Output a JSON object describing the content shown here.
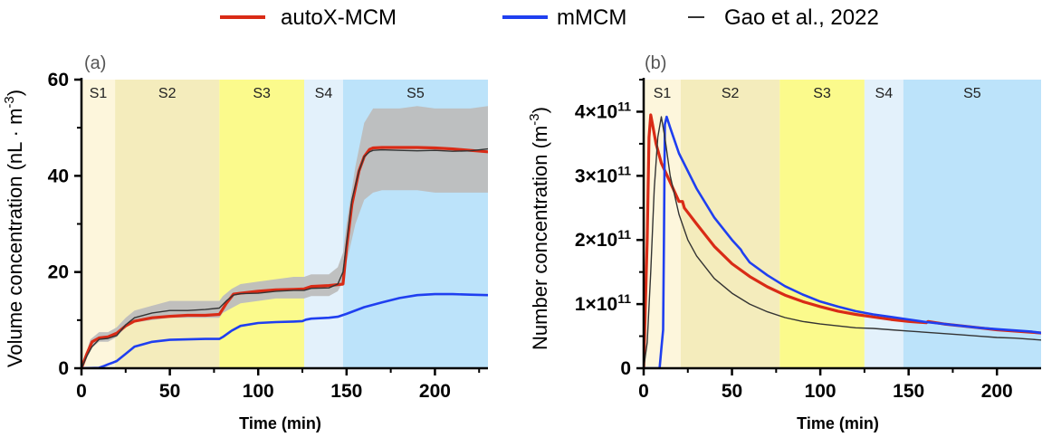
{
  "legend": [
    {
      "name": "autoX-MCM",
      "color": "#d92b16"
    },
    {
      "name": "mMCM",
      "color": "#1f3ff0"
    },
    {
      "name": "Gao et al., 2022",
      "color": "#333333"
    }
  ],
  "stage_colors": [
    "#fdf6dc",
    "#f4ecbc",
    "#fbfa8c",
    "#e3f1fb",
    "#bce3fa"
  ],
  "chart_data": [
    {
      "type": "line",
      "panel_label": "(a)",
      "xlabel": "Time (min)",
      "ylabel_main": "Volume concentration (nL · m",
      "ylabel_sup": "-3",
      "ylabel_tail": ")",
      "xlim": [
        0,
        230
      ],
      "ylim": [
        0,
        60
      ],
      "xticks": [
        0,
        50,
        100,
        150,
        200
      ],
      "yticks": [
        0,
        20,
        40,
        60
      ],
      "ytick_labels": [
        "0",
        "20",
        "40",
        "60"
      ],
      "stages": [
        {
          "label": "S1",
          "start": 0,
          "end": 19
        },
        {
          "label": "S2",
          "start": 19,
          "end": 78
        },
        {
          "label": "S3",
          "start": 78,
          "end": 126
        },
        {
          "label": "S4",
          "start": 126,
          "end": 148
        },
        {
          "label": "S5",
          "start": 148,
          "end": 230
        }
      ],
      "band": {
        "x": [
          0,
          5,
          10,
          15,
          20,
          25,
          30,
          40,
          50,
          60,
          70,
          78,
          80,
          85,
          90,
          100,
          110,
          120,
          126,
          130,
          140,
          145,
          148,
          150,
          155,
          160,
          165,
          170,
          180,
          190,
          200,
          210,
          220,
          230
        ],
        "upper": [
          0,
          6,
          7.5,
          7.5,
          8.5,
          10.5,
          12,
          13,
          14,
          14,
          14,
          14,
          15,
          16.5,
          17.5,
          18,
          18.5,
          19,
          19,
          19.5,
          19.5,
          21,
          24,
          30,
          42,
          51,
          54,
          54,
          54,
          54.5,
          54,
          54,
          54,
          54.5
        ],
        "lower": [
          0,
          4,
          5.5,
          5.5,
          6.5,
          8.5,
          9.5,
          10,
          10.5,
          10.5,
          10.5,
          10.5,
          11.5,
          12.5,
          13.5,
          14,
          14.5,
          14.5,
          14.5,
          15,
          15,
          16,
          18,
          22,
          30,
          35,
          36.5,
          37,
          37,
          37,
          36.5,
          36.5,
          36.5,
          36.5
        ]
      },
      "series": [
        {
          "name": "autoX-MCM",
          "color": "#d92b16",
          "width": 3.2,
          "x": [
            0,
            3,
            6,
            10,
            15,
            20,
            25,
            30,
            40,
            50,
            60,
            70,
            78,
            82,
            86,
            90,
            100,
            110,
            120,
            126,
            130,
            140,
            148,
            150,
            153,
            157,
            160,
            163,
            165,
            170,
            180,
            190,
            200,
            210,
            220,
            230
          ],
          "y": [
            0,
            3,
            5.5,
            6.3,
            6.5,
            7.3,
            8.8,
            9.8,
            10.5,
            10.8,
            11,
            11,
            11.2,
            13.5,
            15.4,
            15.6,
            16,
            16.3,
            16.4,
            16.5,
            17,
            17.2,
            17.5,
            25,
            34,
            41,
            44,
            45.5,
            45.8,
            45.9,
            45.9,
            45.9,
            45.8,
            45.6,
            45.3,
            45
          ]
        },
        {
          "name": "mMCM",
          "color": "#1f3ff0",
          "width": 2.6,
          "x": [
            0,
            10,
            13,
            15,
            18,
            20,
            25,
            30,
            40,
            50,
            60,
            70,
            78,
            80,
            85,
            90,
            100,
            110,
            120,
            125,
            127,
            130,
            140,
            145,
            150,
            160,
            170,
            180,
            190,
            200,
            210,
            220,
            230
          ],
          "y": [
            0,
            0.1,
            0.5,
            0.8,
            1.2,
            1.5,
            3,
            4.5,
            5.5,
            5.9,
            6,
            6.1,
            6.1,
            6.5,
            7.8,
            8.8,
            9.4,
            9.6,
            9.7,
            9.8,
            10.1,
            10.3,
            10.5,
            10.7,
            11.3,
            12.7,
            13.7,
            14.6,
            15.2,
            15.4,
            15.4,
            15.3,
            15.2
          ]
        },
        {
          "name": "Gao et al., 2022",
          "color": "#333333",
          "width": 1.4,
          "x": [
            0,
            3,
            6,
            10,
            15,
            20,
            25,
            30,
            40,
            50,
            60,
            70,
            78,
            82,
            86,
            90,
            100,
            110,
            120,
            126,
            130,
            140,
            145,
            148,
            150,
            153,
            157,
            160,
            163,
            165,
            170,
            180,
            190,
            200,
            210,
            220,
            230
          ],
          "y": [
            0,
            2.5,
            4.5,
            6,
            6.2,
            6.8,
            9,
            10.5,
            11.5,
            12,
            12,
            12.2,
            12.5,
            14,
            15.2,
            15.5,
            15.6,
            16,
            16.2,
            16.2,
            16.6,
            16.7,
            17.5,
            20,
            26,
            35,
            41,
            44,
            45,
            45.3,
            45.4,
            45.3,
            45.2,
            45.3,
            45.1,
            45.2,
            45.6
          ]
        }
      ]
    },
    {
      "type": "line",
      "panel_label": "(b)",
      "xlabel": "Time (min)",
      "ylabel_main": "Number concentration (m",
      "ylabel_sup": "-3",
      "ylabel_tail": ")",
      "xlim": [
        0,
        225
      ],
      "ylim": [
        0,
        450000000000
      ],
      "xticks": [
        0,
        50,
        100,
        150,
        200
      ],
      "yticks": [
        0,
        100000000000,
        200000000000,
        300000000000,
        400000000000
      ],
      "ytick_labels": [
        "0",
        "1×10",
        "2×10",
        "3×10",
        "4×10"
      ],
      "ytick_sup": "11",
      "stages": [
        {
          "label": "S1",
          "start": 0,
          "end": 21
        },
        {
          "label": "S2",
          "start": 21,
          "end": 77
        },
        {
          "label": "S3",
          "start": 77,
          "end": 125
        },
        {
          "label": "S4",
          "start": 125,
          "end": 147
        },
        {
          "label": "S5",
          "start": 147,
          "end": 225
        }
      ],
      "series": [
        {
          "name": "autoX-MCM",
          "color": "#d92b16",
          "width": 3.2,
          "x": [
            0,
            2,
            3,
            4,
            5,
            7,
            10,
            15,
            20,
            22,
            23,
            30,
            40,
            50,
            60,
            70,
            80,
            90,
            100,
            110,
            120,
            130,
            140,
            150,
            160,
            161,
            170,
            180,
            190,
            200,
            210,
            220,
            225
          ],
          "y": [
            0,
            200000000000,
            360000000000,
            395000000000,
            380000000000,
            350000000000,
            320000000000,
            290000000000,
            260000000000,
            260000000000,
            250000000000,
            225000000000,
            190000000000,
            163000000000,
            143000000000,
            127000000000,
            114000000000,
            104000000000,
            96000000000,
            89000000000,
            84000000000,
            80000000000,
            76000000000,
            73000000000,
            71000000000,
            73000000000,
            69000000000,
            66000000000,
            63000000000,
            60000000000,
            58000000000,
            56000000000,
            55000000000
          ]
        },
        {
          "name": "mMCM",
          "color": "#1f3ff0",
          "width": 2.6,
          "x": [
            0,
            9,
            10,
            11,
            11.5,
            12,
            13,
            15,
            20,
            30,
            40,
            50,
            55,
            56,
            60,
            70,
            80,
            90,
            100,
            110,
            120,
            130,
            140,
            150,
            160,
            170,
            180,
            190,
            200,
            210,
            220,
            225
          ],
          "y": [
            0,
            0,
            30000000000,
            60000000000,
            200000000000,
            380000000000,
            392000000000,
            375000000000,
            335000000000,
            280000000000,
            235000000000,
            200000000000,
            185000000000,
            180000000000,
            165000000000,
            145000000000,
            128000000000,
            115000000000,
            104000000000,
            96000000000,
            89000000000,
            84000000000,
            80000000000,
            76000000000,
            72000000000,
            69000000000,
            66000000000,
            63000000000,
            61000000000,
            59000000000,
            57000000000,
            55000000000
          ]
        },
        {
          "name": "Gao et al., 2022",
          "color": "#333333",
          "width": 1.4,
          "x": [
            0,
            2,
            4,
            6,
            8,
            10,
            12,
            15,
            20,
            25,
            30,
            40,
            50,
            60,
            70,
            80,
            90,
            100,
            110,
            120,
            130,
            140,
            150,
            160,
            170,
            180,
            190,
            200,
            210,
            220,
            225
          ],
          "y": [
            0,
            40000000000,
            150000000000,
            280000000000,
            360000000000,
            392000000000,
            360000000000,
            300000000000,
            240000000000,
            200000000000,
            175000000000,
            140000000000,
            117000000000,
            100000000000,
            88000000000,
            79000000000,
            73000000000,
            69000000000,
            66000000000,
            63000000000,
            62000000000,
            60000000000,
            58000000000,
            56000000000,
            54000000000,
            52000000000,
            50000000000,
            48000000000,
            47000000000,
            45000000000,
            44000000000
          ]
        }
      ]
    }
  ]
}
